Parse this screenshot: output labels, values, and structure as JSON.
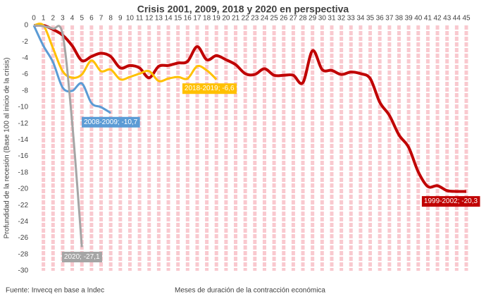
{
  "chart_data": {
    "type": "line",
    "title": "Crisis 2001, 2009, 2018 y 2020 en perspectiva",
    "xlabel": "Meses de duración de la contracción económica",
    "ylabel": "Profundidad de la recesión (Base 100 al inicio de la crisis)",
    "source": "Fuente: Invecq en base a Indec",
    "xlim": [
      0,
      45
    ],
    "xticks": [
      0,
      1,
      2,
      3,
      4,
      5,
      6,
      7,
      8,
      9,
      10,
      11,
      12,
      13,
      14,
      15,
      16,
      17,
      18,
      19,
      20,
      21,
      22,
      23,
      24,
      25,
      26,
      27,
      28,
      29,
      30,
      31,
      32,
      33,
      34,
      35,
      36,
      37,
      38,
      39,
      40,
      41,
      42,
      43,
      44,
      45
    ],
    "ylim": [
      -30,
      0
    ],
    "yticks": [
      0,
      -2,
      -4,
      -6,
      -8,
      -10,
      -12,
      -14,
      -16,
      -18,
      -20,
      -22,
      -24,
      -26,
      -28,
      -30
    ],
    "x_grid": true,
    "grid_color": "#f9c9cf",
    "series": [
      {
        "name": "1999-2002",
        "color": "#c00000",
        "end_label": "1999-2002; -20,3",
        "values": [
          0,
          0,
          -0.5,
          -1.2,
          -2.5,
          -4.3,
          -3.8,
          -3.4,
          -3.8,
          -5.2,
          -4.9,
          -5.2,
          -6.4,
          -5,
          -4.9,
          -4.6,
          -4.4,
          -2.6,
          -4.2,
          -3.7,
          -4.2,
          -4.8,
          -5.9,
          -6,
          -5.3,
          -6.1,
          -6.1,
          -6.1,
          -7,
          -3.1,
          -5.4,
          -5.5,
          -6,
          -5.7,
          -5.9,
          -6.5,
          -9.4,
          -11,
          -13.4,
          -14.9,
          -17.9,
          -19.7,
          -19.6,
          -20.2,
          -20.3,
          -20.3
        ]
      },
      {
        "name": "2018-2019",
        "color": "#ffc000",
        "end_label": "2018-2019; -6,6",
        "values": [
          0,
          0,
          -2.8,
          -5.6,
          -6.4,
          -6,
          -4.3,
          -5.6,
          -5.4,
          -6.6,
          -6.3,
          -5.9,
          -5.6,
          -6.8,
          -6.5,
          -6.3,
          -6.5,
          -5,
          -5.5,
          -6.6
        ]
      },
      {
        "name": "2008-2009",
        "color": "#5b9bd5",
        "end_label": "2008-2009; -10,7",
        "values": [
          0,
          -2.5,
          -4.5,
          -7.6,
          -8,
          -7.1,
          -9.5,
          -10,
          -10.7
        ]
      },
      {
        "name": "2020",
        "color": "#a5a5a5",
        "end_label": "2020; -27,1",
        "values": [
          0,
          -0.1,
          -0.4,
          -1.1,
          -12,
          -27.1
        ]
      }
    ]
  }
}
